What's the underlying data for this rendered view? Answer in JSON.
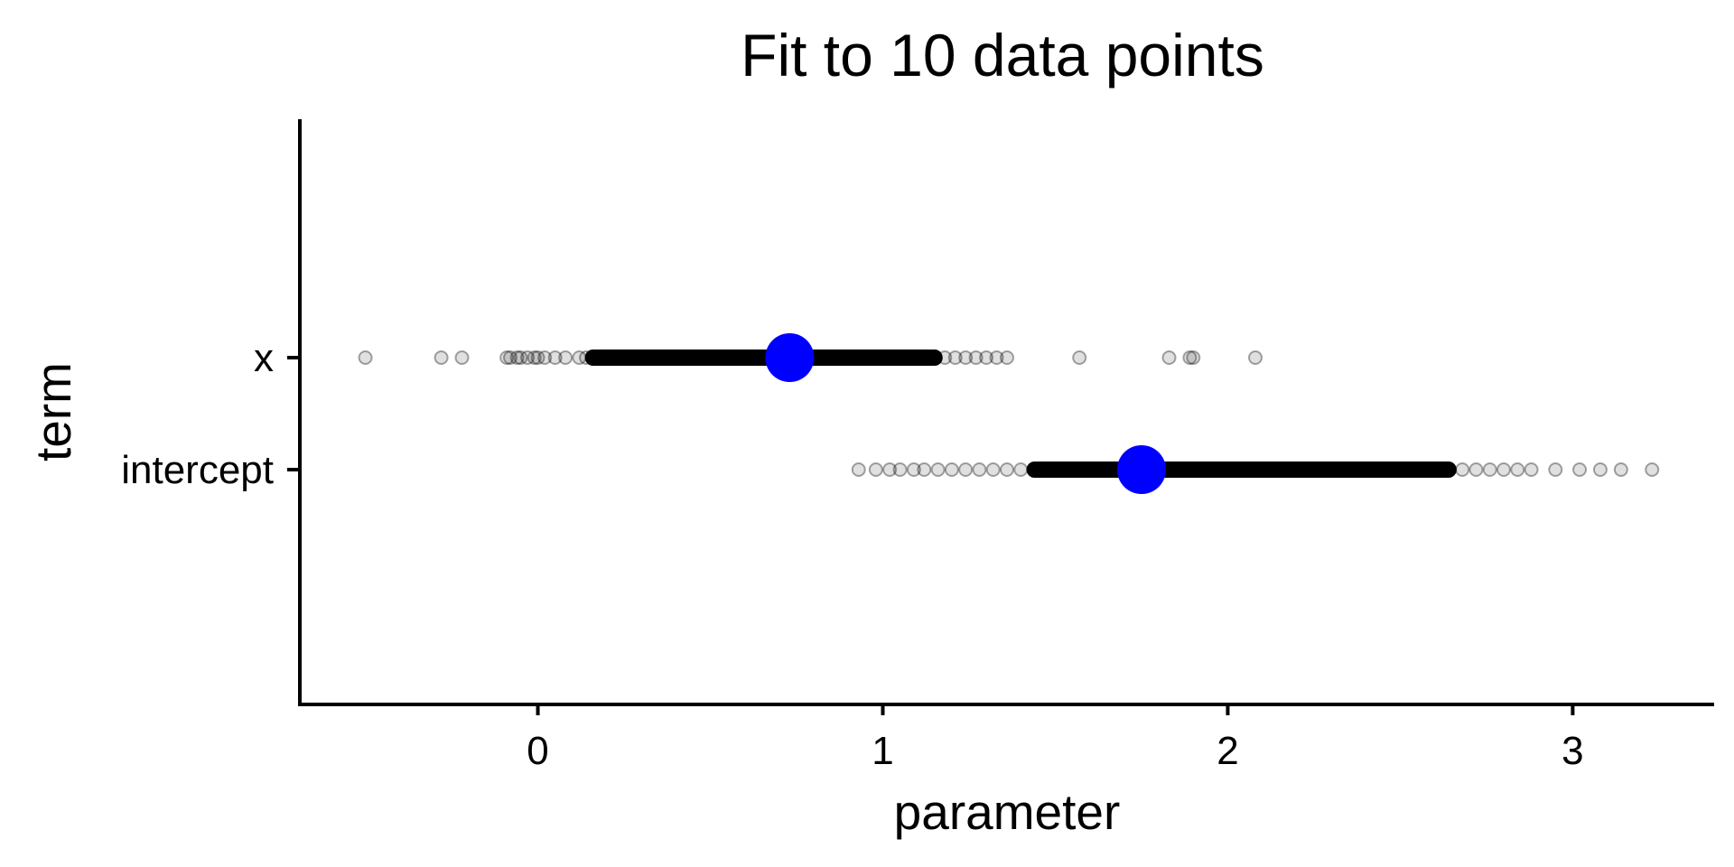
{
  "chart_data": {
    "type": "scatter",
    "title": "Fit to 10 data points",
    "xlabel": "parameter",
    "ylabel": "term",
    "xlim": [
      -0.69,
      3.41
    ],
    "x_ticks": [
      0,
      1,
      2,
      3
    ],
    "y_categories": [
      "intercept",
      "x"
    ],
    "grid": false,
    "legend": "none",
    "colors": {
      "samples": "#000000",
      "estimate": "#0000ff"
    },
    "samples": [
      {
        "term": "x",
        "values": [
          -0.5,
          -0.28,
          -0.22,
          -0.09,
          -0.08,
          -0.06,
          -0.05,
          -0.03,
          -0.01,
          0.0,
          0.02,
          0.05,
          0.08,
          0.12,
          0.14,
          0.16,
          0.19,
          0.22,
          0.25,
          0.28,
          0.31,
          0.34,
          0.37,
          0.4,
          0.43,
          0.46,
          0.49,
          0.52,
          0.55,
          0.58,
          0.61,
          0.64,
          0.67,
          0.7,
          0.73,
          0.76,
          0.79,
          0.82,
          0.85,
          0.88,
          0.91,
          0.94,
          0.97,
          1.0,
          1.03,
          1.06,
          1.09,
          1.12,
          1.15,
          1.18,
          1.21,
          1.24,
          1.27,
          1.3,
          1.33,
          1.36,
          1.57,
          1.83,
          1.89,
          1.9,
          2.08
        ]
      },
      {
        "term": "intercept",
        "values": [
          0.93,
          0.98,
          1.02,
          1.05,
          1.09,
          1.12,
          1.16,
          1.2,
          1.24,
          1.28,
          1.32,
          1.36,
          1.4,
          1.44,
          1.48,
          1.52,
          1.56,
          1.6,
          1.64,
          1.68,
          1.72,
          1.76,
          1.8,
          1.84,
          1.88,
          1.92,
          1.96,
          2.0,
          2.04,
          2.08,
          2.12,
          2.16,
          2.2,
          2.24,
          2.28,
          2.32,
          2.36,
          2.4,
          2.44,
          2.48,
          2.52,
          2.56,
          2.6,
          2.64,
          2.68,
          2.72,
          2.76,
          2.8,
          2.84,
          2.88,
          2.95,
          3.02,
          3.08,
          3.14,
          3.23
        ]
      }
    ],
    "estimates": [
      {
        "term": "x",
        "value": 0.73
      },
      {
        "term": "intercept",
        "value": 1.75
      }
    ]
  }
}
